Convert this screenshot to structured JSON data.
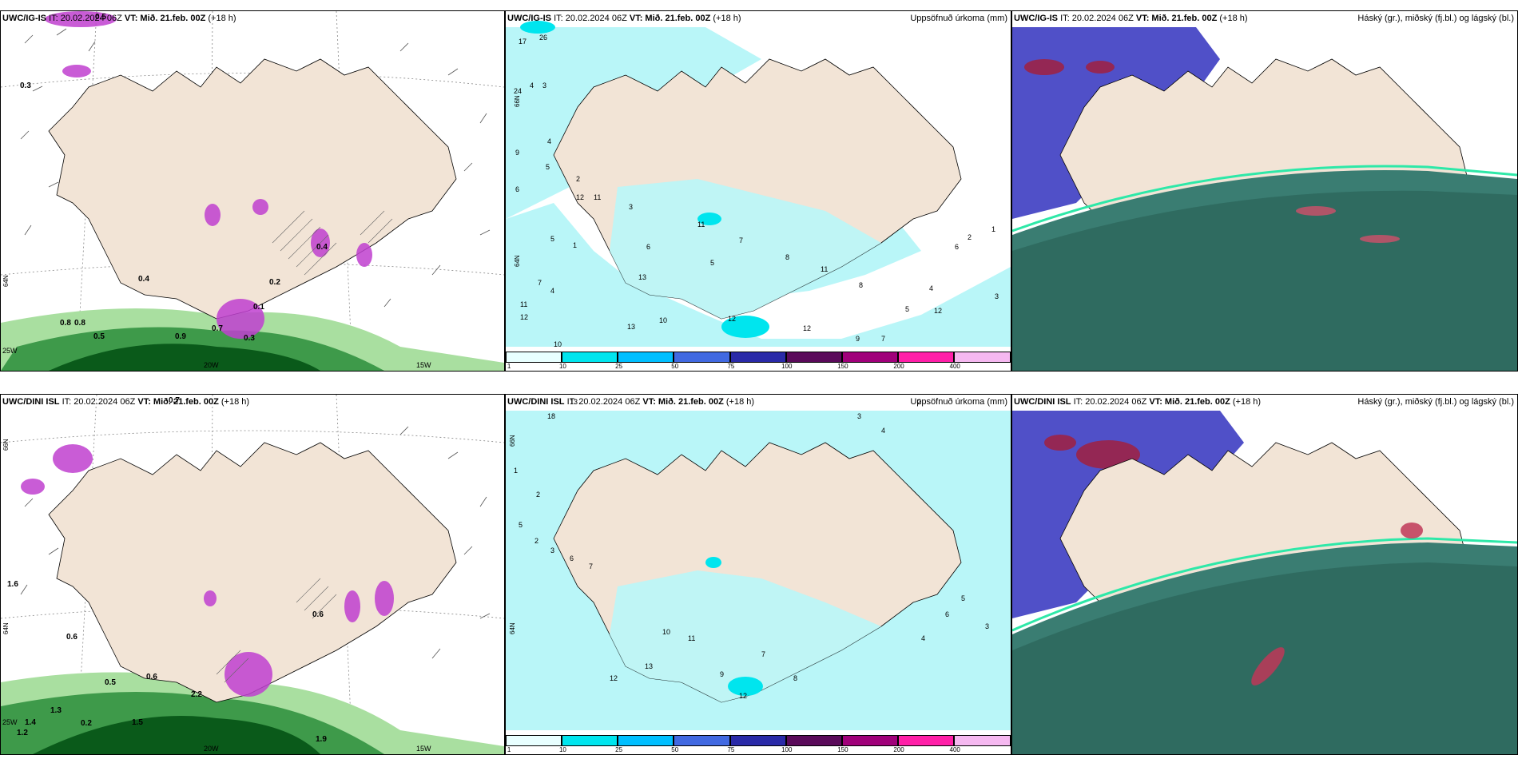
{
  "rows": [
    {
      "model": "UWC/IG-IS",
      "it": "IT: 20.02.2024 06Z",
      "vt": "VT: Mið. 21.feb. 00Z",
      "lead": "(+18 h)",
      "left_labels": [
        "0.5",
        "0.3",
        "0.4",
        "0.8",
        "0.8",
        "0.5",
        "0.9",
        "0.7",
        "0.3",
        "0.2",
        "0.4",
        "0.1"
      ],
      "left_lon": [
        "25W",
        "20W",
        "15W"
      ],
      "left_lat": [
        "64N"
      ],
      "mid_numbers": [
        "17",
        "26",
        "24",
        "4",
        "3",
        "9",
        "6",
        "4",
        "5",
        "2",
        "12",
        "11",
        "3",
        "5",
        "7",
        "4",
        "12",
        "11",
        "13",
        "10",
        "11",
        "6",
        "5",
        "7",
        "8",
        "11",
        "8",
        "1",
        "13",
        "12",
        "12",
        "3",
        "4",
        "5",
        "6",
        "7",
        "9",
        "10",
        "12",
        "2",
        "1"
      ],
      "mid_lat": [
        "66N",
        "64N"
      ]
    },
    {
      "model": "UWC/DINI ISL",
      "it": "IT: 20.02.2024 06Z",
      "vt": "VT: Mið. 21.feb. 00Z",
      "lead": "(+18 h)",
      "left_labels": [
        "0.7",
        "0.6",
        "0.6",
        "1.6",
        "0.5",
        "0.6",
        "2.2",
        "1.9",
        "1.3",
        "1.4",
        "1.2",
        "0.2",
        "1.5"
      ],
      "left_lon": [
        "25W",
        "20W",
        "15W"
      ],
      "left_lat": [
        "66N",
        "64N"
      ],
      "mid_numbers": [
        "18",
        "13",
        "2",
        "3",
        "1",
        "4",
        "5",
        "2",
        "3",
        "6",
        "7",
        "12",
        "13",
        "10",
        "11",
        "9",
        "8",
        "12",
        "7",
        "4",
        "5",
        "6",
        "3",
        "2"
      ],
      "mid_lat": [
        "66N",
        "64N"
      ]
    }
  ],
  "precip_title": "Uppsöfnuð úrkoma (mm)",
  "cloud_title": "Háský (gr.), miðský (fj.bl.) og lágský (bl.)",
  "colorbar": {
    "ticks": [
      "1",
      "10",
      "25",
      "50",
      "75",
      "100",
      "150",
      "200",
      "400"
    ],
    "colors": [
      "#e8ffff",
      "#00e5ee",
      "#00bfff",
      "#4169e1",
      "#2a2aa8",
      "#5a0a5a",
      "#a0007a",
      "#ff1fa8",
      "#f5b8f0"
    ]
  },
  "palette": {
    "land": "#f2e4d6",
    "ocean_precip": "#b9f6f8",
    "green_dark": "#0a5a1a",
    "green_mid": "#3e9a4a",
    "green_light": "#a9dfa0",
    "magenta": "#c040d0",
    "cloud_teal": "#3a7d72",
    "cloud_blue": "#5050c8",
    "cloud_red": "#a02040"
  }
}
